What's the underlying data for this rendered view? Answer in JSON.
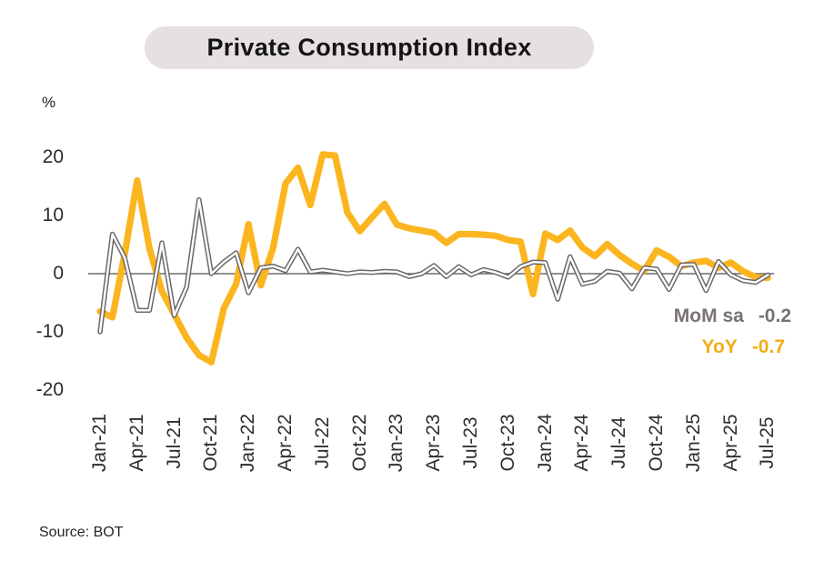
{
  "chart": {
    "title": "Private Consumption Index",
    "unit": "%",
    "source": "Source: BOT"
  },
  "legend": {
    "mom": {
      "label": "MoM sa",
      "value": "-0.2"
    },
    "yoy": {
      "label": "YoY",
      "value": "-0.7"
    }
  },
  "chart_data": {
    "type": "line",
    "title": "Private Consumption Index",
    "ylabel": "%",
    "ylim": [
      -20,
      20
    ],
    "y_ticks": [
      20,
      10,
      0,
      -10,
      -20
    ],
    "grid": false,
    "legend_position": "inside-right",
    "axis_color": "#6B6B6B",
    "x_tick_labels": [
      "Jan-21",
      "Apr-21",
      "Jul-21",
      "Oct-21",
      "Jan-22",
      "Apr-22",
      "Jul-22",
      "Oct-22",
      "Jan-23",
      "Apr-23",
      "Jul-23",
      "Oct-23",
      "Jan-24",
      "Apr-24",
      "Jul-24",
      "Oct-24",
      "Jan-25",
      "Apr-25",
      "Jul-25"
    ],
    "x": [
      "Jan-21",
      "Feb-21",
      "Mar-21",
      "Apr-21",
      "May-21",
      "Jun-21",
      "Jul-21",
      "Aug-21",
      "Sep-21",
      "Oct-21",
      "Nov-21",
      "Dec-21",
      "Jan-22",
      "Feb-22",
      "Mar-22",
      "Apr-22",
      "May-22",
      "Jun-22",
      "Jul-22",
      "Aug-22",
      "Sep-22",
      "Oct-22",
      "Nov-22",
      "Dec-22",
      "Jan-23",
      "Feb-23",
      "Mar-23",
      "Apr-23",
      "May-23",
      "Jun-23",
      "Jul-23",
      "Aug-23",
      "Sep-23",
      "Oct-23",
      "Nov-23",
      "Dec-23",
      "Jan-24",
      "Feb-24",
      "Mar-24",
      "Apr-24",
      "May-24",
      "Jun-24",
      "Jul-24",
      "Aug-24",
      "Sep-24",
      "Oct-24",
      "Nov-24",
      "Dec-24",
      "Jan-25",
      "Feb-25",
      "Mar-25",
      "Apr-25",
      "May-25",
      "Jun-25",
      "Jul-25"
    ],
    "series": [
      {
        "name": "MoM sa",
        "color": "#6E6769",
        "style": "outlined-double-line",
        "last_value": -0.2,
        "values": [
          -10,
          6.8,
          2.7,
          -6.3,
          -6.3,
          5.3,
          -7.2,
          -2.3,
          12.7,
          0,
          2,
          3.6,
          -3.3,
          1,
          1.3,
          0.5,
          4.2,
          0.3,
          0.6,
          0.3,
          0,
          0.3,
          0.2,
          0.4,
          0.3,
          -0.5,
          0,
          1.4,
          -0.5,
          1.2,
          -0.2,
          0.7,
          0.2,
          -0.6,
          1.2,
          2,
          1.9,
          -4.4,
          2.9,
          -1.8,
          -1.3,
          0.4,
          0.1,
          -2.6,
          1,
          0.8,
          -2.7,
          1.5,
          1.6,
          -2.9,
          2.1,
          -0.2,
          -1.2,
          -1.5,
          -0.2
        ]
      },
      {
        "name": "YoY",
        "color": "#FBB51F",
        "style": "thick-line",
        "last_value": -0.7,
        "values": [
          -6.5,
          -7.5,
          3.5,
          16,
          4.3,
          -3,
          -7,
          -11,
          -14,
          -15.2,
          -6,
          -1.8,
          8.5,
          -2,
          4.5,
          15.5,
          18.2,
          11.8,
          20.5,
          20.3,
          10.5,
          7.3,
          9.7,
          12,
          8.4,
          7.8,
          7.4,
          7,
          5.3,
          6.8,
          6.8,
          6.7,
          6.5,
          5.8,
          5.5,
          -3.5,
          6.9,
          5.8,
          7.4,
          4.5,
          3,
          5.1,
          3.2,
          1.7,
          0.5,
          4,
          2.9,
          1.3,
          1.9,
          2.2,
          1,
          1.9,
          0.4,
          -0.6,
          -0.7
        ]
      }
    ]
  }
}
